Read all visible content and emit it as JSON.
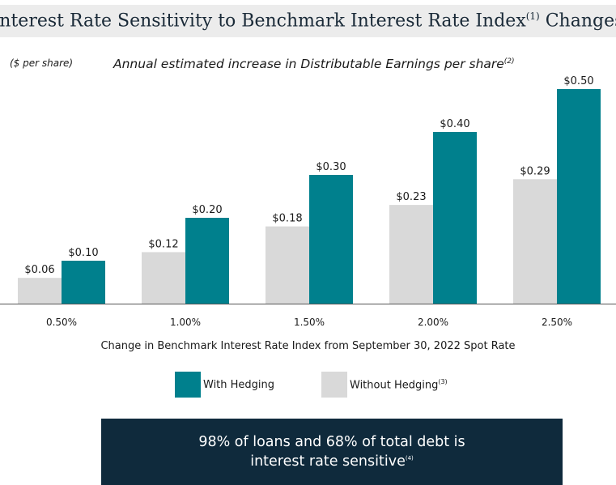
{
  "title": {
    "text": "Interest Rate Sensitivity to Benchmark Interest Rate Index",
    "footnote": "(1)",
    "suffix": " Changes"
  },
  "unit_label": "($ per share)",
  "subtitle": {
    "text": "Annual estimated increase in Distributable Earnings per share",
    "footnote": "(2)"
  },
  "colors": {
    "with_hedging": "#00808d",
    "without_hedging": "#d9d9d9",
    "title_bg": "#ececec",
    "callout_bg": "#0f2a3c"
  },
  "chart_data": {
    "type": "bar",
    "title": "Annual estimated increase in Distributable Earnings per share",
    "categories": [
      "0.50%",
      "1.00%",
      "1.50%",
      "2.00%",
      "2.50%"
    ],
    "series": [
      {
        "name": "Without Hedging",
        "values": [
          0.06,
          0.12,
          0.18,
          0.23,
          0.29
        ],
        "labels": [
          "$0.06",
          "$0.12",
          "$0.18",
          "$0.23",
          "$0.29"
        ]
      },
      {
        "name": "With Hedging",
        "values": [
          0.1,
          0.2,
          0.3,
          0.4,
          0.5
        ],
        "labels": [
          "$0.10",
          "$0.20",
          "$0.30",
          "$0.40",
          "$0.50"
        ]
      }
    ],
    "xlabel": "Change in Benchmark Interest Rate Index from September 30, 2022 Spot Rate",
    "ylabel": "($ per share)",
    "ylim": [
      0,
      0.5
    ],
    "grid": false,
    "legend": "bottom"
  },
  "legend": {
    "with_hedging": "With Hedging",
    "without_hedging": "Without Hedging",
    "without_hedging_footnote": "(3)"
  },
  "callout": {
    "line1": "98% of loans and 68% of total debt is",
    "line2": "interest rate sensitive",
    "footnote": "(4)"
  }
}
